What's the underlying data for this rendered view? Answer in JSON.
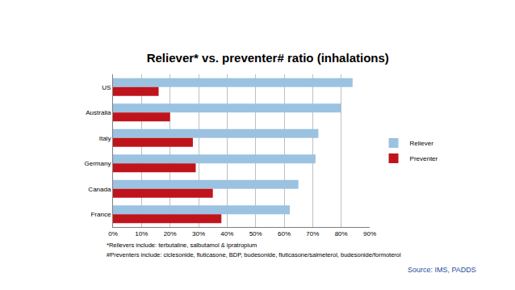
{
  "chart_data": {
    "type": "bar",
    "orientation": "horizontal",
    "title": "Reliever* vs. preventer# ratio (inhalations)",
    "categories": [
      "US",
      "Australia",
      "Italy",
      "Germany",
      "Canada",
      "France"
    ],
    "series": [
      {
        "name": "Reliever",
        "color": "#9BC2E0",
        "values": [
          84,
          80,
          72,
          71,
          65,
          62
        ]
      },
      {
        "name": "Preventer",
        "color": "#C0141C",
        "values": [
          16,
          20,
          28,
          29,
          35,
          38
        ]
      }
    ],
    "xlim": [
      0,
      90
    ],
    "xticks": [
      {
        "value": 0,
        "label": "0%"
      },
      {
        "value": 10,
        "label": "10%"
      },
      {
        "value": 20,
        "label": "20%"
      },
      {
        "value": 30,
        "label": "30%"
      },
      {
        "value": 40,
        "label": "40%"
      },
      {
        "value": 50,
        "label": "50%"
      },
      {
        "value": 60,
        "label": "60%"
      },
      {
        "value": 70,
        "label": "70%"
      },
      {
        "value": 80,
        "label": "80%"
      },
      {
        "value": 90,
        "label": "90%"
      }
    ],
    "grid": true,
    "legend": "right",
    "annotations": [
      "*Relievers include: terbutaline, salbutamol & ipratropium",
      "#Preventers include: ciclesonide, fluticasone, BDP, budesonide, fluticasone/salmeterol, budesonide/formoterol",
      "Source: IMS, PADDS"
    ]
  }
}
